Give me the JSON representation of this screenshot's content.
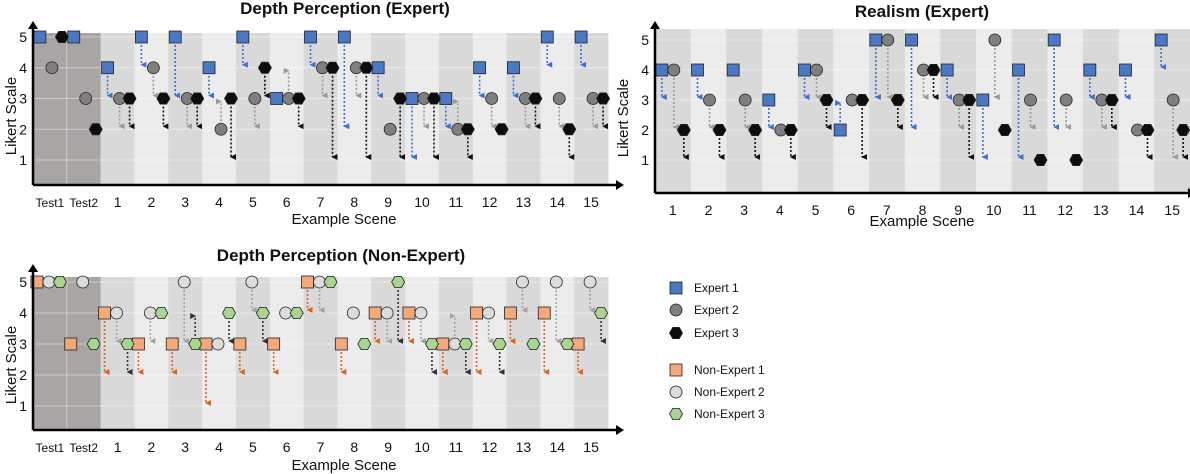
{
  "colors": {
    "expert1": "#4a78c4",
    "expert2": "#7f7f7f",
    "expert3": "#0d0d0d",
    "nonexpert1": "#f4a97c",
    "nonexpert2": "#dcdcdc",
    "nonexpert3": "#a8d590",
    "arrow_expert1": "#3e6fd2",
    "arrow_expert2": "#9a9a9a",
    "arrow_expert3": "#111111",
    "arrow_nonexpert1": "#d9661e",
    "arrow_nonexpert2": "#a3a3a3",
    "arrow_nonexpert3": "#333333",
    "test_band": "#a8a5a4",
    "band_light": "#ececec",
    "band_dark": "#d9d9d9"
  },
  "legend": {
    "items": [
      {
        "label": "Expert 1",
        "key": "expert1",
        "marker": "square"
      },
      {
        "label": "Expert 2",
        "key": "expert2",
        "marker": "circle"
      },
      {
        "label": "Expert 3",
        "key": "expert3",
        "marker": "hexagon"
      },
      {
        "label": "Non-Expert 1",
        "key": "nonexpert1",
        "marker": "square"
      },
      {
        "label": "Non-Expert 2",
        "key": "nonexpert2",
        "marker": "circle"
      },
      {
        "label": "Non-Expert 3",
        "key": "nonexpert3",
        "marker": "hexagon"
      }
    ]
  },
  "chart_data": [
    {
      "type": "scatter",
      "title": "Depth Perception (Expert)",
      "xlabel": "Example Scene",
      "ylabel": "Likert Scale",
      "ylim": [
        0,
        5.5
      ],
      "yticks": [
        1,
        2,
        3,
        4,
        5
      ],
      "categories": [
        "Test1",
        "Test2",
        "1",
        "2",
        "3",
        "4",
        "5",
        "6",
        "7",
        "8",
        "9",
        "10",
        "11",
        "12",
        "13",
        "14",
        "15"
      ],
      "test_categories": [
        "Test1",
        "Test2"
      ],
      "series": [
        {
          "name": "Expert 1",
          "key": "expert1",
          "marker": "square",
          "initial": [
            5,
            5,
            4,
            5,
            5,
            4,
            5,
            3,
            5,
            5,
            4,
            3,
            3,
            4,
            4,
            5,
            5
          ],
          "final": [
            null,
            null,
            3,
            4,
            3,
            3,
            4,
            null,
            4,
            2,
            3,
            1,
            2,
            3,
            3,
            4,
            4
          ]
        },
        {
          "name": "Expert 2",
          "key": "expert2",
          "marker": "circle",
          "initial": [
            4,
            3,
            3,
            4,
            3,
            2,
            3,
            3,
            4,
            4,
            2,
            3,
            2,
            3,
            3,
            3,
            3
          ],
          "final": [
            null,
            null,
            2,
            3,
            2,
            3,
            2,
            4,
            3,
            3,
            null,
            2,
            3,
            2,
            2,
            2,
            2
          ]
        },
        {
          "name": "Expert 3",
          "key": "expert3",
          "marker": "hexagon",
          "initial": [
            5,
            2,
            3,
            3,
            3,
            3,
            4,
            3,
            4,
            4,
            3,
            3,
            2,
            2,
            3,
            2,
            3
          ],
          "final": [
            null,
            null,
            2,
            2,
            2,
            1,
            3,
            2,
            1,
            1,
            1,
            1,
            1,
            null,
            2,
            1,
            2
          ]
        }
      ]
    },
    {
      "type": "scatter",
      "title": "Realism (Expert)",
      "xlabel": "Example Scene",
      "ylabel": "Likert Scale",
      "ylim": [
        0,
        5.5
      ],
      "yticks": [
        1,
        2,
        3,
        4,
        5
      ],
      "categories": [
        "1",
        "2",
        "3",
        "4",
        "5",
        "6",
        "7",
        "8",
        "9",
        "10",
        "11",
        "12",
        "13",
        "14",
        "15"
      ],
      "test_categories": [],
      "series": [
        {
          "name": "Expert 1",
          "key": "expert1",
          "marker": "square",
          "initial": [
            4,
            4,
            4,
            3,
            4,
            2,
            5,
            5,
            4,
            3,
            4,
            5,
            4,
            4,
            5
          ],
          "final": [
            3,
            3,
            null,
            2,
            3,
            3,
            3,
            2,
            3,
            1,
            1,
            2,
            3,
            3,
            4
          ]
        },
        {
          "name": "Expert 2",
          "key": "expert2",
          "marker": "circle",
          "initial": [
            4,
            3,
            3,
            2,
            4,
            3,
            5,
            4,
            3,
            5,
            3,
            3,
            3,
            2,
            3
          ],
          "final": [
            2,
            2,
            2,
            null,
            3,
            null,
            3,
            3,
            2,
            3,
            2,
            2,
            2,
            null,
            1
          ]
        },
        {
          "name": "Expert 3",
          "key": "expert3",
          "marker": "hexagon",
          "initial": [
            2,
            2,
            2,
            2,
            3,
            3,
            3,
            4,
            3,
            2,
            1,
            1,
            3,
            2,
            2
          ],
          "final": [
            1,
            1,
            1,
            1,
            2,
            1,
            2,
            3,
            1,
            null,
            null,
            null,
            2,
            1,
            1
          ]
        }
      ]
    },
    {
      "type": "scatter",
      "title": "Depth Perception (Non-Expert)",
      "xlabel": "Example Scene",
      "ylabel": "Likert Scale",
      "ylim": [
        0,
        5.5
      ],
      "yticks": [
        1,
        2,
        3,
        4,
        5
      ],
      "categories": [
        "Test1",
        "Test2",
        "1",
        "2",
        "3",
        "4",
        "5",
        "6",
        "7",
        "8",
        "9",
        "10",
        "11",
        "12",
        "13",
        "14",
        "15"
      ],
      "test_categories": [
        "Test1",
        "Test2"
      ],
      "series": [
        {
          "name": "Non-Expert 1",
          "key": "nonexpert1",
          "marker": "square",
          "initial": [
            5,
            3,
            4,
            3,
            3,
            3,
            3,
            3,
            5,
            3,
            4,
            4,
            3,
            4,
            4,
            4,
            3
          ],
          "final": [
            null,
            null,
            2,
            2,
            2,
            1,
            2,
            2,
            4,
            2,
            3,
            3,
            2,
            2,
            3,
            2,
            2
          ]
        },
        {
          "name": "Non-Expert 2",
          "key": "nonexpert2",
          "marker": "circle",
          "initial": [
            5,
            5,
            4,
            4,
            5,
            3,
            5,
            4,
            5,
            4,
            4,
            4,
            3,
            4,
            5,
            5,
            5
          ],
          "final": [
            null,
            null,
            3,
            3,
            3,
            null,
            4,
            null,
            4,
            null,
            3,
            3,
            4,
            3,
            4,
            3,
            4
          ]
        },
        {
          "name": "Non-Expert 3",
          "key": "nonexpert3",
          "marker": "hexagon",
          "initial": [
            5,
            3,
            3,
            4,
            3,
            4,
            4,
            4,
            5,
            3,
            5,
            3,
            3,
            3,
            3,
            3,
            4
          ],
          "final": [
            null,
            null,
            2,
            null,
            4,
            3,
            3,
            null,
            null,
            null,
            3,
            2,
            2,
            2,
            null,
            null,
            3
          ]
        }
      ]
    }
  ]
}
